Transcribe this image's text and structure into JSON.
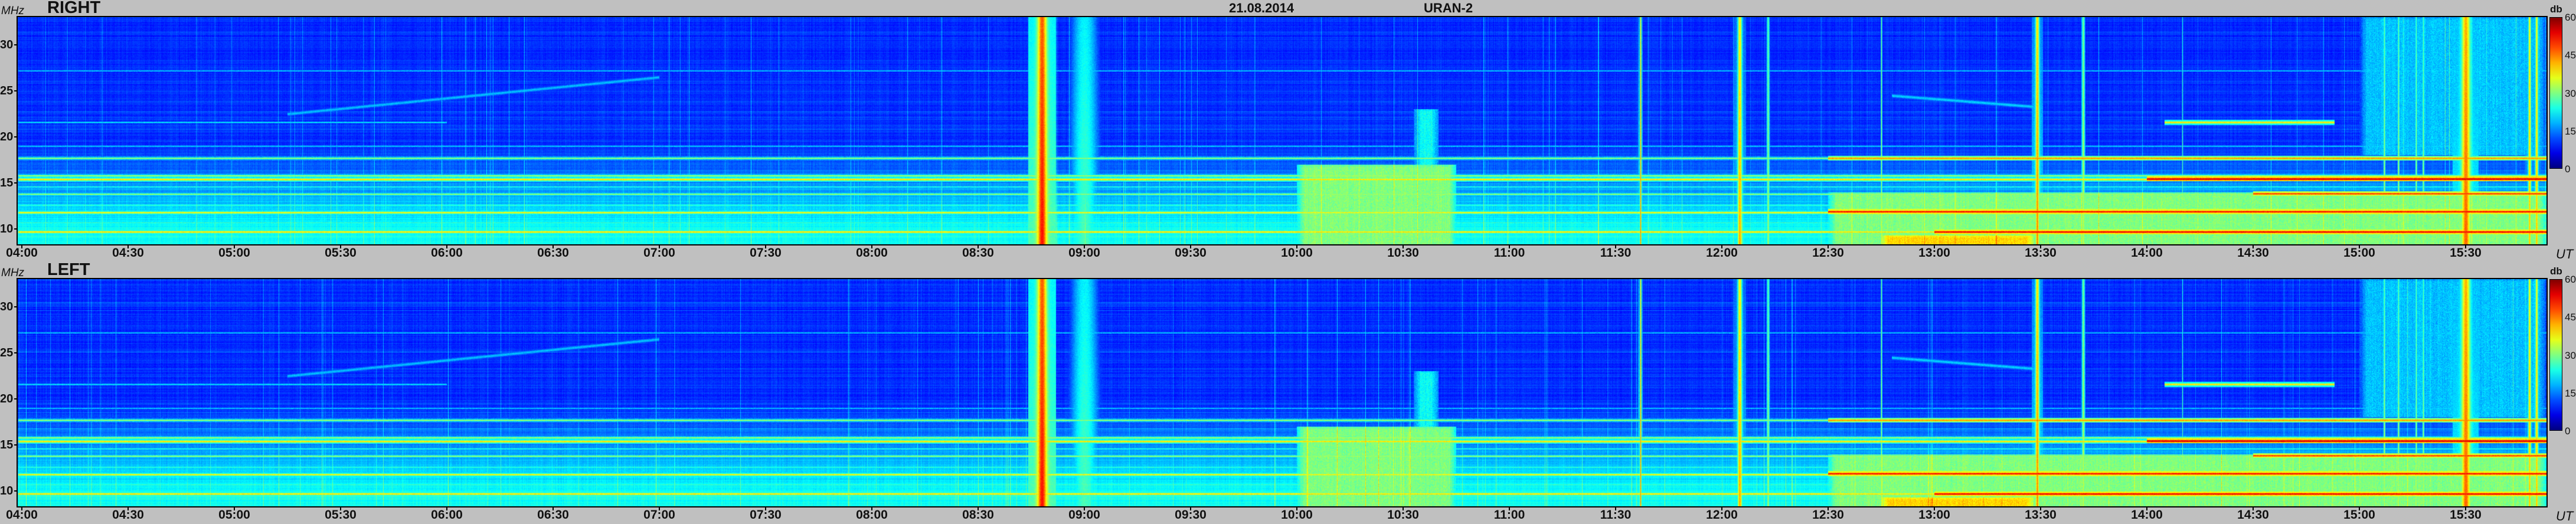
{
  "header": {
    "date": "21.08.2014",
    "instrument": "URAN-2"
  },
  "chart_data": {
    "type": "heatmap",
    "title": "21.08.2014",
    "instrument": "URAN-2",
    "xlabel": "UT",
    "ylabel": "MHz",
    "xlim": [
      "03:59",
      "15:53"
    ],
    "ylim": [
      8.3,
      33.0
    ],
    "x_ticks": [
      "04:00",
      "04:30",
      "05:00",
      "05:30",
      "06:00",
      "06:30",
      "07:00",
      "07:30",
      "08:00",
      "08:30",
      "09:00",
      "09:30",
      "10:00",
      "10:30",
      "11:00",
      "11:30",
      "12:00",
      "12:30",
      "13:00",
      "13:30",
      "14:00",
      "14:30",
      "15:00",
      "15:30"
    ],
    "y_ticks": [
      10,
      15,
      20,
      25,
      30
    ],
    "colorbar": {
      "label": "db",
      "range": [
        0,
        60
      ],
      "ticks": [
        0,
        15,
        30,
        45,
        60
      ],
      "colormap": "jet"
    },
    "panels": [
      {
        "name": "RIGHT"
      },
      {
        "name": "LEFT"
      }
    ],
    "features": {
      "bands": [
        {
          "freq_mhz": 9.7,
          "db": 40,
          "start": "03:59",
          "end": "13:00"
        },
        {
          "freq_mhz": 9.7,
          "db": 54,
          "start": "13:00",
          "end": "15:53"
        },
        {
          "freq_mhz": 11.8,
          "db": 38,
          "start": "03:59",
          "end": "12:30"
        },
        {
          "freq_mhz": 11.9,
          "db": 53,
          "start": "12:30",
          "end": "15:53"
        },
        {
          "freq_mhz": 13.8,
          "db": 32,
          "start": "03:59",
          "end": "14:30"
        },
        {
          "freq_mhz": 13.85,
          "db": 50,
          "start": "14:30",
          "end": "15:53"
        },
        {
          "freq_mhz": 15.4,
          "db": 40,
          "start": "03:59",
          "end": "14:00"
        },
        {
          "freq_mhz": 15.45,
          "db": 56,
          "start": "14:00",
          "end": "15:53"
        },
        {
          "freq_mhz": 15.8,
          "db": 33,
          "start": "03:59",
          "end": "15:53"
        },
        {
          "freq_mhz": 17.7,
          "db": 32,
          "start": "03:59",
          "end": "12:30"
        },
        {
          "freq_mhz": 17.7,
          "db": 45,
          "start": "12:30",
          "end": "15:53"
        },
        {
          "freq_mhz": 21.6,
          "db": 22,
          "start": "03:59",
          "end": "06:00"
        },
        {
          "freq_mhz": 21.6,
          "db": 40,
          "start": "14:05",
          "end": "14:53"
        },
        {
          "freq_mhz": 27.2,
          "db": 20,
          "start": "03:59",
          "end": "15:53"
        },
        {
          "freq_mhz": 12.6,
          "db": 26,
          "start": "03:59",
          "end": "15:53"
        },
        {
          "freq_mhz": 10.7,
          "db": 27,
          "start": "03:59",
          "end": "15:53"
        },
        {
          "freq_mhz": 14.6,
          "db": 25,
          "start": "03:59",
          "end": "15:53"
        },
        {
          "freq_mhz": 19.0,
          "db": 20,
          "start": "03:59",
          "end": "15:53"
        }
      ],
      "bursts": [
        {
          "time": "08:48",
          "db": 47,
          "width_min": 1.3,
          "fmax_mhz": 33
        },
        {
          "time": "09:00",
          "db": 22,
          "width_min": 5,
          "fmax_mhz": 33
        },
        {
          "time": "11:37",
          "db": 40,
          "width_min": 0.2,
          "fmax_mhz": 33
        },
        {
          "time": "12:05",
          "db": 38,
          "width_min": 0.6,
          "fmax_mhz": 33
        },
        {
          "time": "12:13",
          "db": 27,
          "width_min": 0.5,
          "fmax_mhz": 33
        },
        {
          "time": "12:45",
          "db": 30,
          "width_min": 0.2,
          "fmax_mhz": 33
        },
        {
          "time": "13:29",
          "db": 40,
          "width_min": 0.5,
          "fmax_mhz": 33
        },
        {
          "time": "13:42",
          "db": 29,
          "width_min": 0.5,
          "fmax_mhz": 33
        },
        {
          "time": "14:10",
          "db": 24,
          "width_min": 0.2,
          "fmax_mhz": 33
        },
        {
          "time": "15:07",
          "db": 29,
          "width_min": 0.3,
          "fmax_mhz": 33
        },
        {
          "time": "15:11",
          "db": 29,
          "width_min": 0.3,
          "fmax_mhz": 33
        },
        {
          "time": "15:16",
          "db": 28,
          "width_min": 0.3,
          "fmax_mhz": 33
        },
        {
          "time": "15:18",
          "db": 28,
          "width_min": 0.3,
          "fmax_mhz": 33
        },
        {
          "time": "15:30",
          "db": 42,
          "width_min": 1.2,
          "fmax_mhz": 33
        },
        {
          "time": "15:48",
          "db": 37,
          "width_min": 0.4,
          "fmax_mhz": 33
        },
        {
          "time": "15:50",
          "db": 37,
          "width_min": 0.4,
          "fmax_mhz": 33
        }
      ],
      "regions": [
        {
          "start": "10:00",
          "end": "10:45",
          "fmin_mhz": 8.3,
          "fmax_mhz": 17,
          "db": 30
        },
        {
          "start": "10:33",
          "end": "10:40",
          "fmin_mhz": 17,
          "fmax_mhz": 23,
          "db": 23
        },
        {
          "start": "12:30",
          "end": "15:53",
          "fmin_mhz": 8.3,
          "fmax_mhz": 14,
          "db": 30
        },
        {
          "start": "12:45",
          "end": "13:28",
          "fmin_mhz": 8.3,
          "fmax_mhz": 9.3,
          "db": 40
        },
        {
          "start": "15:00",
          "end": "15:53",
          "fmin_mhz": 18,
          "fmax_mhz": 33,
          "db": 19
        }
      ],
      "drifts": [
        {
          "start": "05:15",
          "f_start_mhz": 22.5,
          "end": "07:00",
          "f_end_mhz": 26.5,
          "db": 19
        },
        {
          "start": "12:48",
          "f_start_mhz": 24.5,
          "end": "13:28",
          "f_end_mhz": 23.3,
          "db": 20
        }
      ]
    }
  }
}
